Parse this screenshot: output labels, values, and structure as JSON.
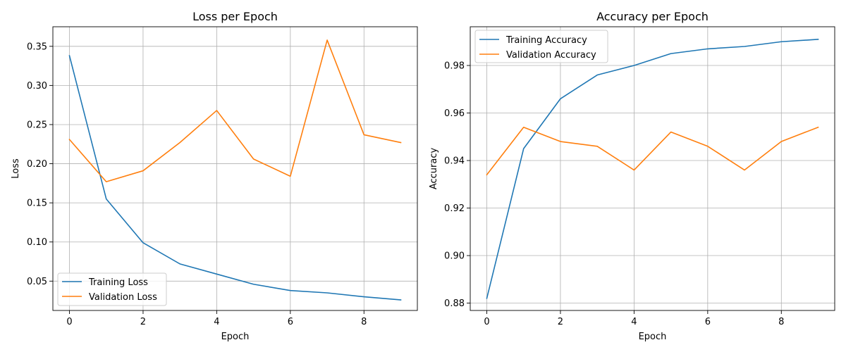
{
  "colors": {
    "training": "#1f77b4",
    "validation": "#ff7f0e",
    "grid": "#b0b0b0",
    "legend_border": "#cccccc"
  },
  "chart_data": [
    {
      "type": "line",
      "title": "Loss per Epoch",
      "xlabel": "Epoch",
      "ylabel": "Loss",
      "xlim": [
        -0.45,
        9.45
      ],
      "ylim": [
        0.0125,
        0.375
      ],
      "xticks": [
        0,
        2,
        4,
        6,
        8
      ],
      "yticks": [
        0.05,
        0.1,
        0.15,
        0.2,
        0.25,
        0.3,
        0.35
      ],
      "ytick_labels": [
        "0.05",
        "0.10",
        "0.15",
        "0.20",
        "0.25",
        "0.30",
        "0.35"
      ],
      "grid": true,
      "legend": "lower-left",
      "x": [
        0,
        1,
        2,
        3,
        4,
        5,
        6,
        7,
        8,
        9
      ],
      "series": [
        {
          "name": "Training Loss",
          "color": "#1f77b4",
          "values": [
            0.338,
            0.155,
            0.099,
            0.072,
            0.059,
            0.046,
            0.038,
            0.035,
            0.03,
            0.026
          ]
        },
        {
          "name": "Validation Loss",
          "color": "#ff7f0e",
          "values": [
            0.231,
            0.177,
            0.191,
            0.227,
            0.268,
            0.206,
            0.184,
            0.358,
            0.237,
            0.227
          ]
        }
      ]
    },
    {
      "type": "line",
      "title": "Accuracy per Epoch",
      "xlabel": "Epoch",
      "ylabel": "Accuracy",
      "xlim": [
        -0.45,
        9.45
      ],
      "ylim": [
        0.8769,
        0.9963
      ],
      "xticks": [
        0,
        2,
        4,
        6,
        8
      ],
      "yticks": [
        0.88,
        0.9,
        0.92,
        0.94,
        0.96,
        0.98
      ],
      "ytick_labels": [
        "0.88",
        "0.90",
        "0.92",
        "0.94",
        "0.96",
        "0.98"
      ],
      "grid": true,
      "legend": "upper-left",
      "x": [
        0,
        1,
        2,
        3,
        4,
        5,
        6,
        7,
        8,
        9
      ],
      "series": [
        {
          "name": "Training Accuracy",
          "color": "#1f77b4",
          "values": [
            0.882,
            0.945,
            0.966,
            0.976,
            0.98,
            0.985,
            0.987,
            0.988,
            0.99,
            0.991
          ]
        },
        {
          "name": "Validation Accuracy",
          "color": "#ff7f0e",
          "values": [
            0.934,
            0.954,
            0.948,
            0.946,
            0.936,
            0.952,
            0.946,
            0.936,
            0.948,
            0.954
          ]
        }
      ]
    }
  ]
}
